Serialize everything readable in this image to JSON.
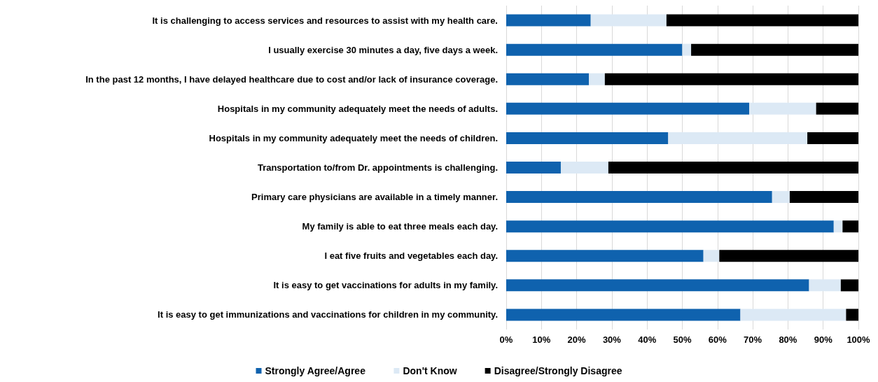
{
  "chart_data": {
    "type": "bar",
    "orientation": "horizontal",
    "stacked": true,
    "categories": [
      "It is challenging to access services and resources to assist with my health care.",
      "I usually exercise 30 minutes a day, five days a week.",
      "In the past 12 months, I have delayed healthcare due to cost and/or lack of insurance coverage.",
      "Hospitals in my community adequately meet the needs of adults.",
      "Hospitals in my community adequately meet the needs of children.",
      "Transportation to/from Dr. appointments is challenging.",
      "Primary care physicians are available in a timely manner.",
      "My family is able to eat three meals each day.",
      "I eat five fruits and vegetables each day.",
      "It is easy to get vaccinations for adults in my family.",
      "It is easy to get immunizations and vaccinations for children in my community."
    ],
    "series": [
      {
        "name": "Strongly Agree/Agree",
        "color": "#0f62ae",
        "values": [
          24,
          50,
          23.5,
          69,
          46,
          15.5,
          75.5,
          93,
          56,
          86,
          66.5
        ]
      },
      {
        "name": "Don't Know",
        "color": "#dce9f5",
        "values": [
          21.5,
          2.5,
          4.5,
          19,
          39.5,
          13.5,
          5,
          2.5,
          4.5,
          9,
          30
        ]
      },
      {
        "name": "Disagree/Strongly Disagree",
        "color": "#000000",
        "values": [
          54.5,
          47.5,
          72,
          12,
          14.5,
          71,
          19.5,
          4.5,
          39.5,
          5,
          3.5
        ]
      }
    ],
    "xlim": [
      0,
      100
    ],
    "xticks": [
      {
        "value": 0,
        "label": "0%"
      },
      {
        "value": 10,
        "label": "10%"
      },
      {
        "value": 20,
        "label": "20%"
      },
      {
        "value": 30,
        "label": "30%"
      },
      {
        "value": 40,
        "label": "40%"
      },
      {
        "value": 50,
        "label": "50%"
      },
      {
        "value": 60,
        "label": "60%"
      },
      {
        "value": 70,
        "label": "70%"
      },
      {
        "value": 80,
        "label": "80%"
      },
      {
        "value": 90,
        "label": "90%"
      },
      {
        "value": 100,
        "label": "100%"
      }
    ],
    "grid": "x",
    "legend": "bottom"
  }
}
